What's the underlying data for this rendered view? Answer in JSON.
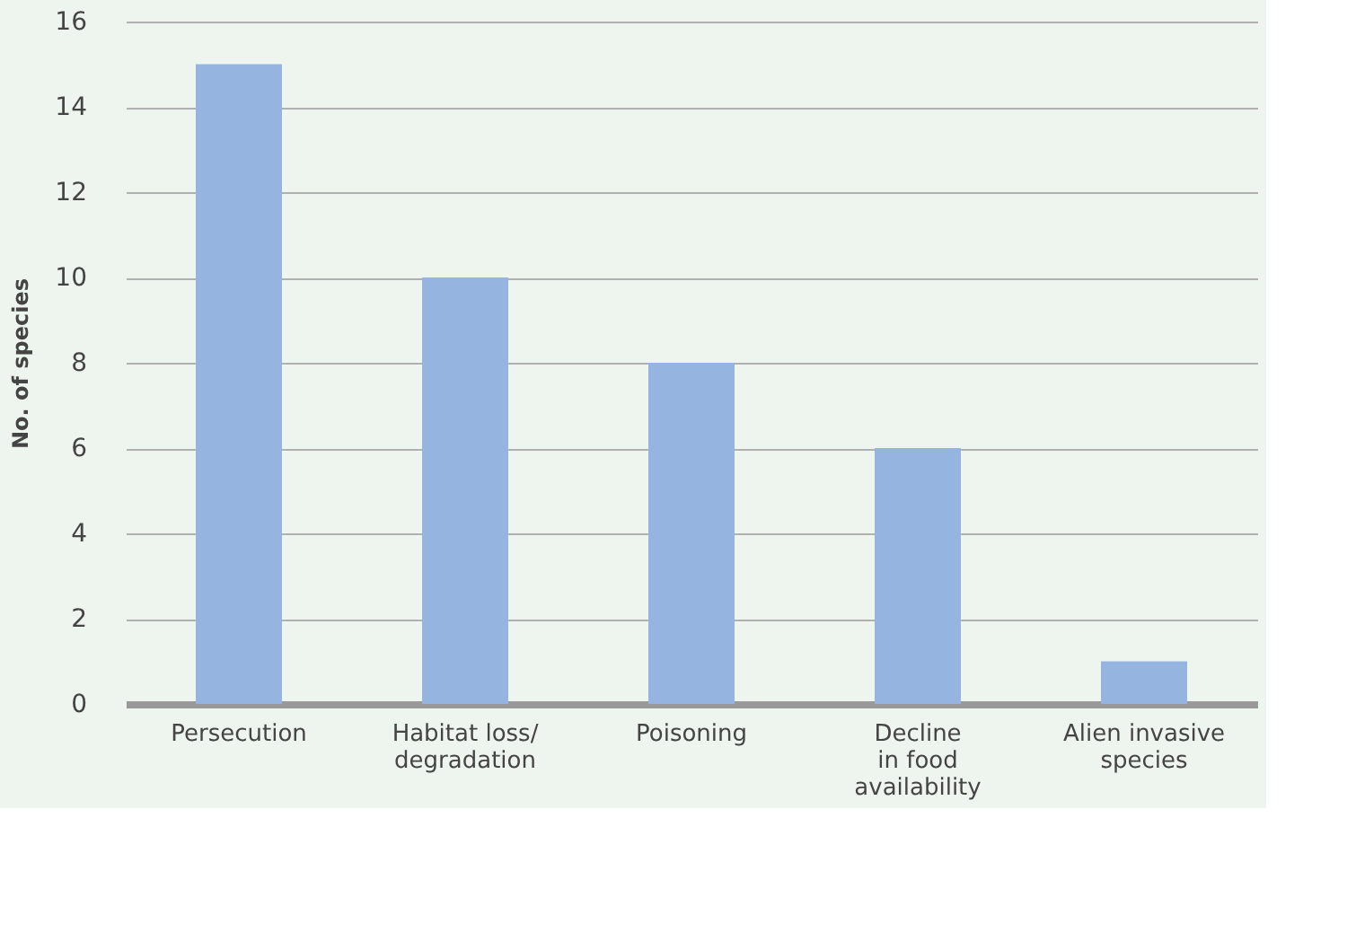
{
  "chart_data": {
    "type": "bar",
    "ylabel": "No. of species",
    "categories": [
      "Persecution",
      "Habitat loss/\ndegradation",
      "Poisoning",
      "Decline\nin food\navailability",
      "Alien invasive\nspecies"
    ],
    "values": [
      15,
      10,
      8,
      6,
      1
    ],
    "color": "#95b5e0",
    "ylim": [
      0,
      16
    ],
    "yticks": [
      0,
      2,
      4,
      6,
      8,
      10,
      12,
      14,
      16
    ],
    "grid": "y"
  }
}
